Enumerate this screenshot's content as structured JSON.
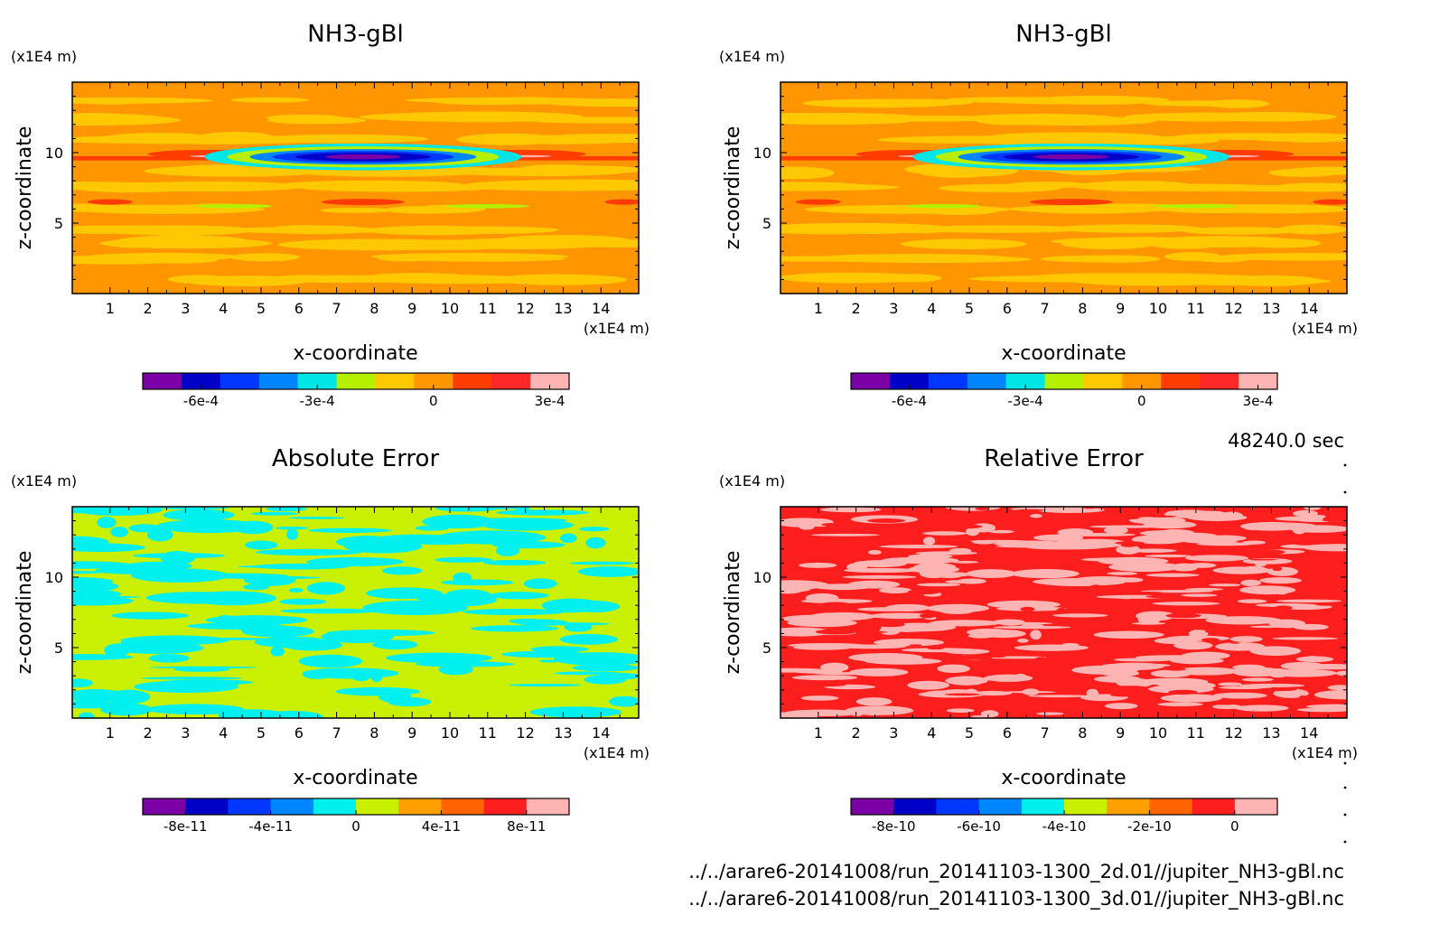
{
  "time_label": "48240.0 sec",
  "files": [
    "../../arare6-20141008/run_20141103-1300_2d.01//jupiter_NH3-gBl.nc",
    "../../arare6-20141008/run_20141103-1300_3d.01//jupiter_NH3-gBl.nc"
  ],
  "chart_data": [
    {
      "type": "heatmap",
      "title": "NH3-gBl",
      "xlabel": "x-coordinate",
      "ylabel": "z-coordinate",
      "xunit": "(x1E4 m)",
      "yunit": "(x1E4 m)",
      "xlim": [
        0,
        15
      ],
      "ylim": [
        0,
        15
      ],
      "xticks": [
        "1",
        "2",
        "3",
        "4",
        "5",
        "6",
        "7",
        "8",
        "9",
        "10",
        "11",
        "12",
        "13",
        "14"
      ],
      "yticks": [
        "5",
        "10"
      ],
      "colorbar": {
        "colors": [
          "#7b00a5",
          "#0000c8",
          "#0037ff",
          "#0087ff",
          "#00e6e6",
          "#b4f000",
          "#ffc800",
          "#ff9600",
          "#ff3c00",
          "#ff2828",
          "#ffb4b4"
        ],
        "tick_labels": [
          "-6e-4",
          "-3e-4",
          "0",
          "3e-4"
        ],
        "tick_values": [
          -0.0006,
          -0.0003,
          0,
          0.0003
        ],
        "range": [
          -0.00075,
          0.00035
        ]
      },
      "pattern": "nh3"
    },
    {
      "type": "heatmap",
      "title": "NH3-gBl",
      "xlabel": "x-coordinate",
      "ylabel": "z-coordinate",
      "xunit": "(x1E4 m)",
      "yunit": "(x1E4 m)",
      "xlim": [
        0,
        15
      ],
      "ylim": [
        0,
        15
      ],
      "xticks": [
        "1",
        "2",
        "3",
        "4",
        "5",
        "6",
        "7",
        "8",
        "9",
        "10",
        "11",
        "12",
        "13",
        "14"
      ],
      "yticks": [
        "5",
        "10"
      ],
      "colorbar": {
        "colors": [
          "#7b00a5",
          "#0000c8",
          "#0037ff",
          "#0087ff",
          "#00e6e6",
          "#b4f000",
          "#ffc800",
          "#ff9600",
          "#ff3c00",
          "#ff2828",
          "#ffb4b4"
        ],
        "tick_labels": [
          "-6e-4",
          "-3e-4",
          "0",
          "3e-4"
        ],
        "tick_values": [
          -0.0006,
          -0.0003,
          0,
          0.0003
        ],
        "range": [
          -0.00075,
          0.00035
        ]
      },
      "pattern": "nh3"
    },
    {
      "type": "heatmap",
      "title": "Absolute Error",
      "xlabel": "x-coordinate",
      "ylabel": "z-coordinate",
      "xunit": "(x1E4 m)",
      "yunit": "(x1E4 m)",
      "xlim": [
        0,
        15
      ],
      "ylim": [
        0,
        15
      ],
      "xticks": [
        "1",
        "2",
        "3",
        "4",
        "5",
        "6",
        "7",
        "8",
        "9",
        "10",
        "11",
        "12",
        "13",
        "14"
      ],
      "yticks": [
        "5",
        "10"
      ],
      "colorbar": {
        "colors": [
          "#7b00a5",
          "#0000c8",
          "#0037ff",
          "#0087ff",
          "#00f0f0",
          "#c8f000",
          "#ffa000",
          "#ff6400",
          "#ff1e1e",
          "#ffb4b4"
        ],
        "tick_labels": [
          "-8e-11",
          "-4e-11",
          "0",
          "4e-11",
          "8e-11"
        ],
        "tick_values": [
          -8e-11,
          -4e-11,
          0,
          4e-11,
          8e-11
        ],
        "range": [
          -1e-10,
          1e-10
        ]
      },
      "pattern": "abs"
    },
    {
      "type": "heatmap",
      "title": "Relative Error",
      "xlabel": "x-coordinate",
      "ylabel": "z-coordinate",
      "xunit": "(x1E4 m)",
      "yunit": "(x1E4 m)",
      "xlim": [
        0,
        15
      ],
      "ylim": [
        0,
        15
      ],
      "xticks": [
        "1",
        "2",
        "3",
        "4",
        "5",
        "6",
        "7",
        "8",
        "9",
        "10",
        "11",
        "12",
        "13",
        "14"
      ],
      "yticks": [
        "5",
        "10"
      ],
      "colorbar": {
        "colors": [
          "#7b00a5",
          "#0000c8",
          "#0037ff",
          "#0087ff",
          "#00f0f0",
          "#c8f000",
          "#ffa000",
          "#ff6400",
          "#ff1e1e",
          "#ffb4b4"
        ],
        "tick_labels": [
          "-8e-10",
          "-6e-10",
          "-4e-10",
          "-2e-10",
          "0"
        ],
        "tick_values": [
          -8e-10,
          -6e-10,
          -4e-10,
          -2e-10,
          0
        ],
        "range": [
          -9e-10,
          1e-10
        ]
      },
      "pattern": "rel"
    }
  ]
}
